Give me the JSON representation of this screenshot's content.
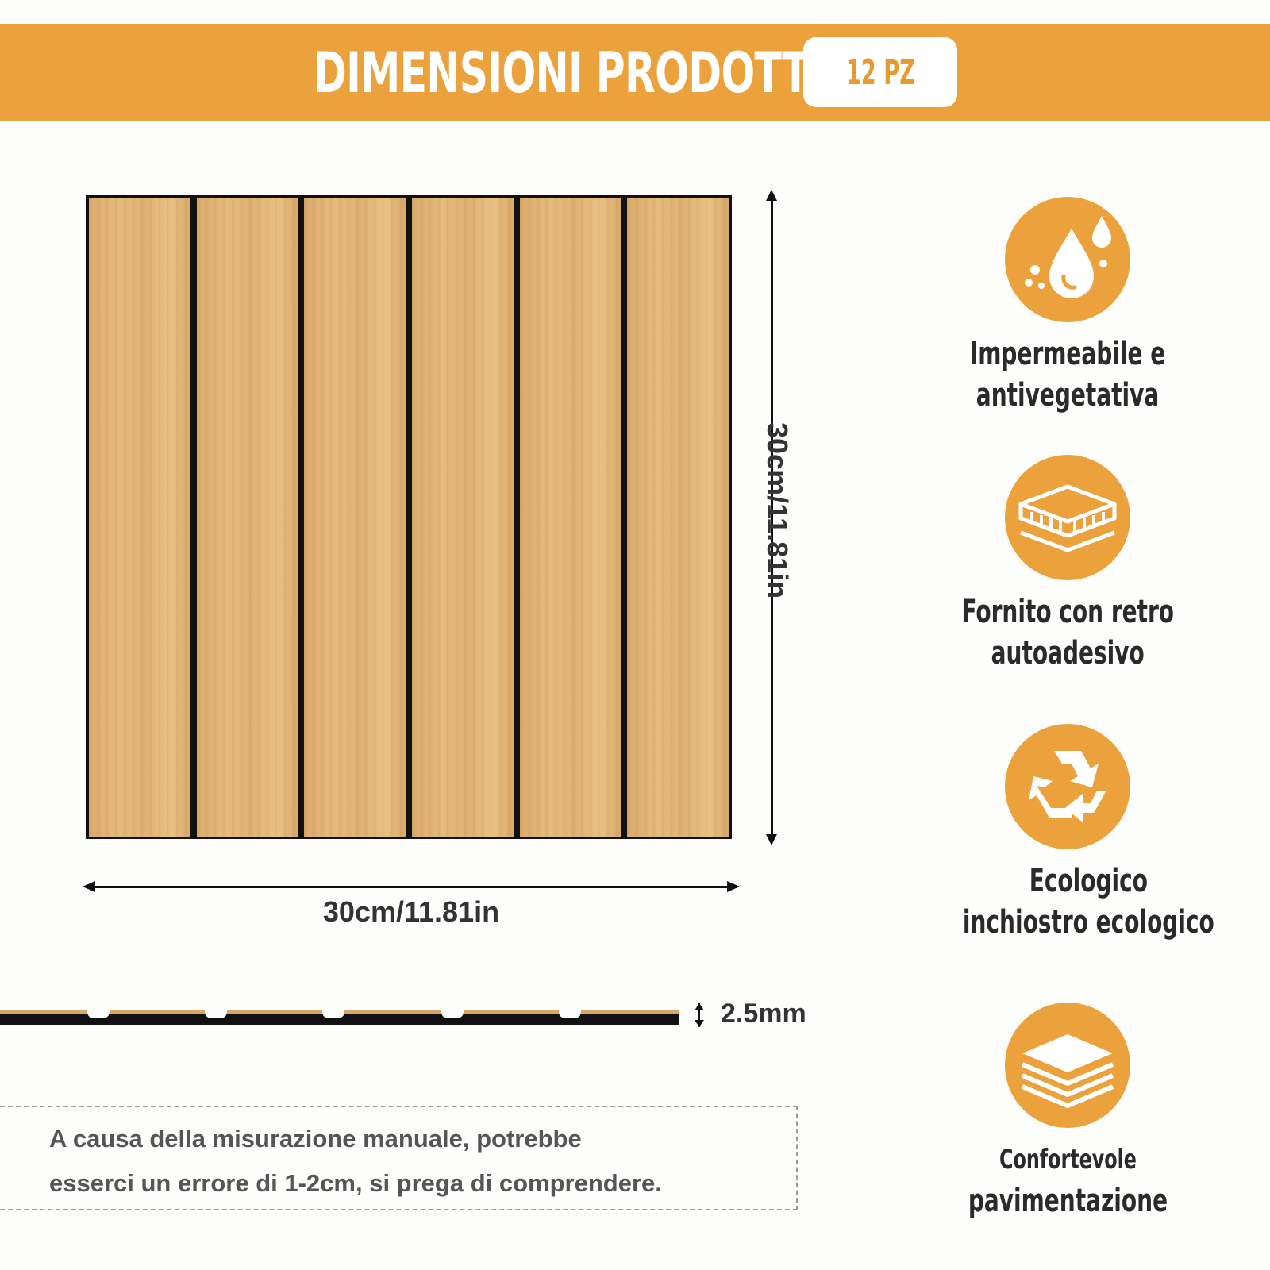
{
  "header": {
    "title": "DIMENSIONI PRODOTTO",
    "badge": "12 PZ"
  },
  "product": {
    "width_label": "30cm/11.81in",
    "height_label": "30cm/11.81in",
    "thickness_label": "2.5mm",
    "plank_count": 6
  },
  "notice": {
    "line1": "A causa della misurazione manuale, potrebbe",
    "line2": "esserci un errore di 1-2cm, si prega di comprendere."
  },
  "features": [
    {
      "icon": "water-drops-icon",
      "line1": "Impermeabile e",
      "line2": "antivegetativa"
    },
    {
      "icon": "adhesive-layers-icon",
      "line1": "Fornito con retro",
      "line2": "autoadesivo"
    },
    {
      "icon": "recycle-icon",
      "line1": "Ecologico",
      "line2": "inchiostro ecologico"
    },
    {
      "icon": "stacked-tiles-icon",
      "line1": "Confortevole",
      "line2": "pavimentazione"
    }
  ],
  "colors": {
    "accent": "#eca23c",
    "wood": "#deaf6f",
    "groove": "#111111"
  }
}
